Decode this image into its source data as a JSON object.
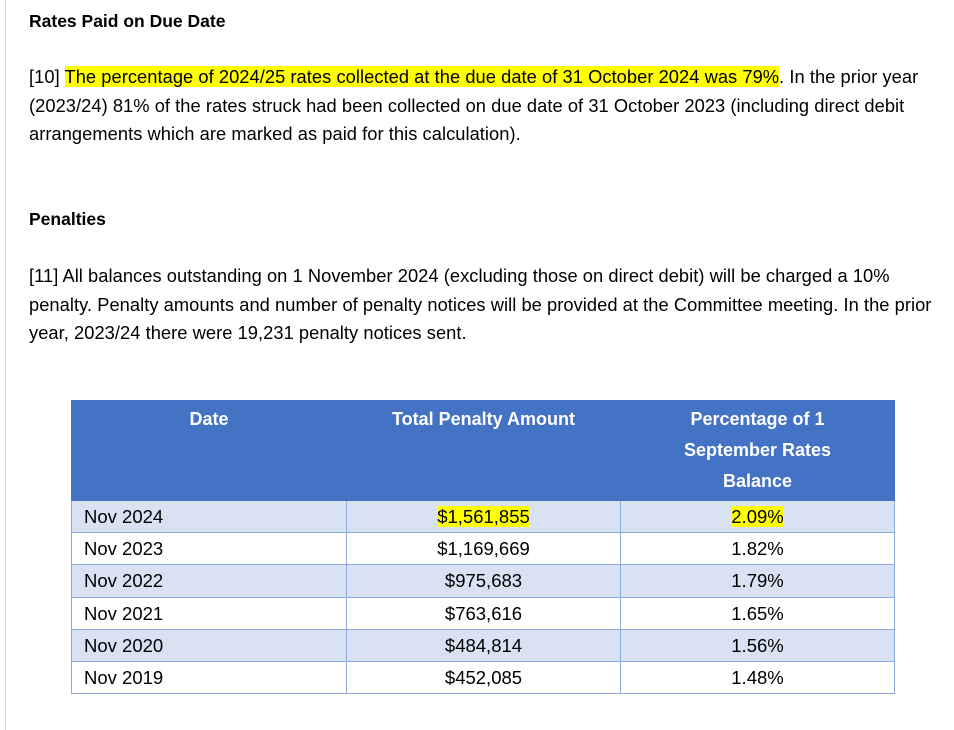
{
  "section_rates": {
    "heading": "Rates Paid on Due Date",
    "para_prefix": "[10] ",
    "para_highlight": "The percentage of 2024/25 rates collected at the due date of 31 October 2024 was 79%",
    "para_rest": ". In the prior year (2023/24) 81% of the rates struck had been collected on due date of 31 October 2023 (including direct debit arrangements which are marked as paid for this calculation)."
  },
  "section_penalties": {
    "heading": "Penalties",
    "para": "[11] All balances outstanding on 1 November 2024 (excluding those on direct debit) will be charged a 10% penalty. Penalty amounts and number of penalty notices will be provided at the Committee meeting. In the prior year, 2023/24 there were 19,231 penalty notices sent."
  },
  "table": {
    "headers": {
      "date": "Date",
      "amount": "Total Penalty Amount",
      "pct_line1": "Percentage of 1",
      "pct_line2": "September Rates",
      "pct_line3": "Balance"
    },
    "rows": [
      {
        "date": "Nov 2024",
        "amount": "$1,561,855",
        "pct": "2.09%",
        "highlighted": true
      },
      {
        "date": "Nov 2023",
        "amount": "$1,169,669",
        "pct": "1.82%",
        "highlighted": false
      },
      {
        "date": "Nov 2022",
        "amount": "$975,683",
        "pct": "1.79%",
        "highlighted": false
      },
      {
        "date": "Nov 2021",
        "amount": "$763,616",
        "pct": "1.65%",
        "highlighted": false
      },
      {
        "date": "Nov 2020",
        "amount": "$484,814",
        "pct": "1.56%",
        "highlighted": false
      },
      {
        "date": "Nov 2019",
        "amount": "$452,085",
        "pct": "1.48%",
        "highlighted": false
      }
    ]
  },
  "colors": {
    "header_bg": "#4472c4",
    "band_bg": "#d9e2f3",
    "border": "#8eaadb",
    "highlight": "#ffff00"
  }
}
